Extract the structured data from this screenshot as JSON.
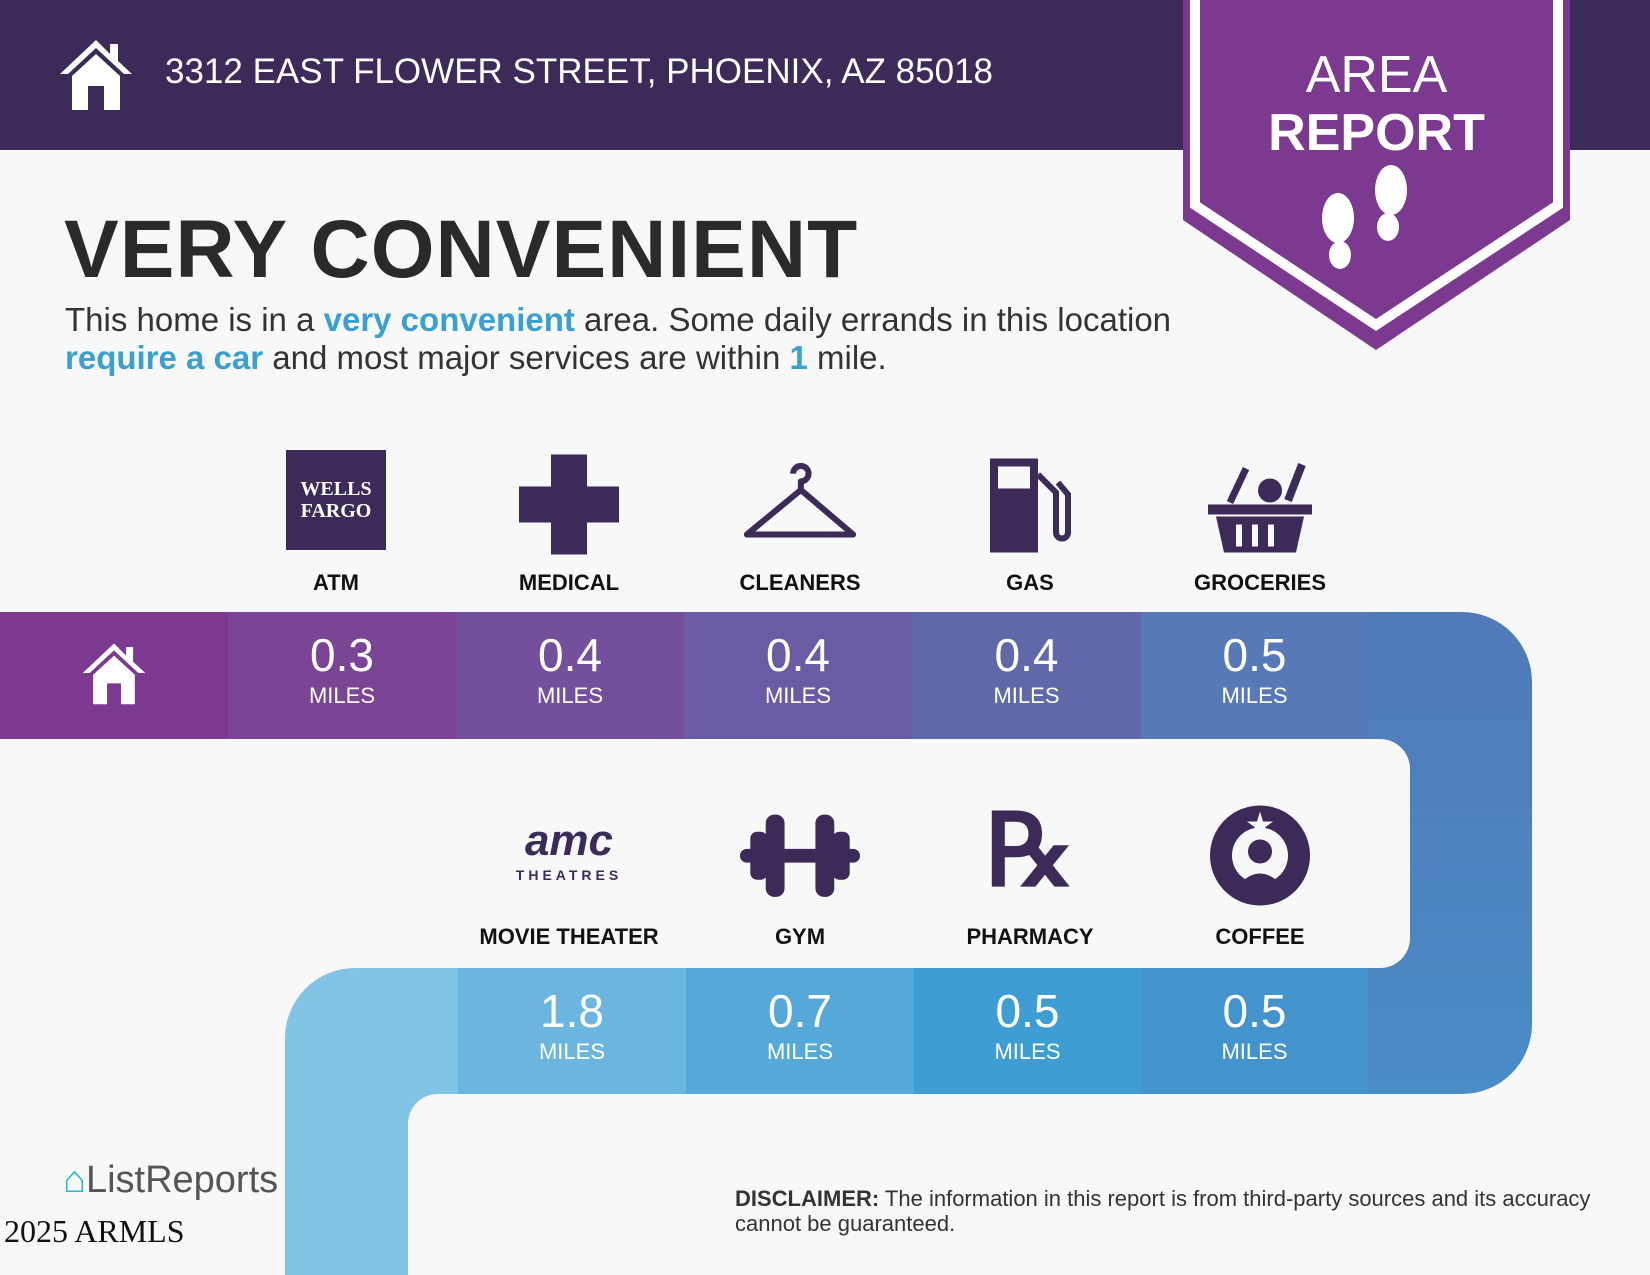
{
  "header": {
    "address": "3312 EAST FLOWER STREET, PHOENIX, AZ 85018",
    "icon": "home-icon"
  },
  "banner": {
    "line1": "AREA",
    "line2": "REPORT",
    "icon": "footprints-icon",
    "color": "#7b3a8f"
  },
  "headline": "VERY CONVENIENT",
  "description": {
    "p1": "This home is in a ",
    "h1": "very convenient",
    "p2": " area. Some daily errands in this location ",
    "h2": "require a car",
    "p3": " and most major services are within ",
    "h3": "1",
    "p4": " mile."
  },
  "row1": [
    {
      "label": "ATM",
      "icon": "wells-fargo-logo",
      "logo_text": "WELLS FARGO",
      "distance": "0.3",
      "unit": "MILES"
    },
    {
      "label": "MEDICAL",
      "icon": "medical-cross-icon",
      "distance": "0.4",
      "unit": "MILES"
    },
    {
      "label": "CLEANERS",
      "icon": "hanger-icon",
      "distance": "0.4",
      "unit": "MILES"
    },
    {
      "label": "GAS",
      "icon": "gas-pump-icon",
      "distance": "0.4",
      "unit": "MILES"
    },
    {
      "label": "GROCERIES",
      "icon": "grocery-basket-icon",
      "distance": "0.5",
      "unit": "MILES"
    }
  ],
  "row2": [
    {
      "label": "MOVIE THEATER",
      "icon": "amc-theatres-logo",
      "logo_text": "amc THEATRES",
      "distance": "1.8",
      "unit": "MILES"
    },
    {
      "label": "GYM",
      "icon": "dumbbell-icon",
      "distance": "0.7",
      "unit": "MILES"
    },
    {
      "label": "PHARMACY",
      "icon": "rx-icon",
      "distance": "0.5",
      "unit": "MILES"
    },
    {
      "label": "COFFEE",
      "icon": "starbucks-logo",
      "distance": "0.5",
      "unit": "MILES"
    }
  ],
  "footer": {
    "disclaimer_label": "DISCLAIMER:",
    "disclaimer_text": " The information in this report is from third-party sources and its accuracy cannot be guaranteed.",
    "logo": "ListReports",
    "copyright": "2025 ARMLS"
  },
  "colors": {
    "header": "#3c2a59",
    "accent": "#3aa0d0",
    "icon": "#3c2a59"
  }
}
